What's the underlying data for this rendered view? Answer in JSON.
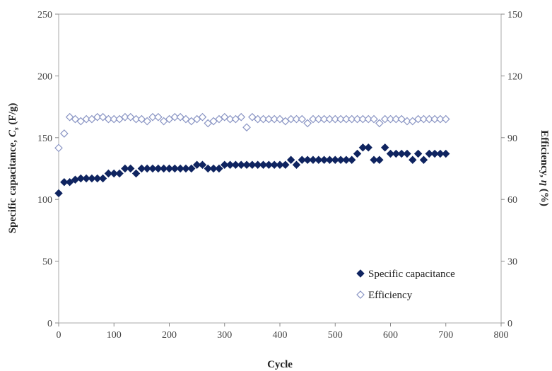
{
  "chart_data": {
    "type": "scatter",
    "title": "",
    "xlabel": "Cycle",
    "ylabel_left": {
      "pre": "Specific capacitance, ",
      "sym": "C",
      "sub": "s",
      "post": " (F/g)"
    },
    "ylabel_right": {
      "pre": "Efficiency, ",
      "sym": "η",
      "post": " (%)"
    },
    "xlim": [
      0,
      800
    ],
    "ylim_left": [
      0,
      250
    ],
    "ylim_right": [
      0,
      150
    ],
    "x_ticks": [
      "0",
      "100",
      "200",
      "300",
      "400",
      "500",
      "600",
      "700",
      "800"
    ],
    "y_left_ticks": [
      "0",
      "50",
      "100",
      "150",
      "200",
      "250"
    ],
    "y_right_ticks": [
      "0",
      "30",
      "60",
      "90",
      "120",
      "150"
    ],
    "grid": false,
    "legend_position": "bottom-right",
    "series": [
      {
        "name": "Specific capacitance",
        "axis": "left",
        "marker": "filled-diamond",
        "color": "#0f2460",
        "x": [
          0,
          10,
          20,
          30,
          40,
          50,
          60,
          70,
          80,
          90,
          100,
          110,
          120,
          130,
          140,
          150,
          160,
          170,
          180,
          190,
          200,
          210,
          220,
          230,
          240,
          250,
          260,
          270,
          280,
          290,
          300,
          310,
          320,
          330,
          340,
          350,
          360,
          370,
          380,
          390,
          400,
          410,
          420,
          430,
          440,
          450,
          460,
          470,
          480,
          490,
          500,
          510,
          520,
          530,
          540,
          550,
          560,
          570,
          580,
          590,
          600,
          610,
          620,
          630,
          640,
          650,
          660,
          670,
          680,
          690,
          700
        ],
        "y": [
          105,
          114,
          114,
          116,
          117,
          117,
          117,
          117,
          117,
          121,
          121,
          121,
          125,
          125,
          121,
          125,
          125,
          125,
          125,
          125,
          125,
          125,
          125,
          125,
          125,
          128,
          128,
          125,
          125,
          125,
          128,
          128,
          128,
          128,
          128,
          128,
          128,
          128,
          128,
          128,
          128,
          128,
          132,
          128,
          132,
          132,
          132,
          132,
          132,
          132,
          132,
          132,
          132,
          132,
          137,
          142,
          142,
          132,
          132,
          142,
          137,
          137,
          137,
          137,
          132,
          137,
          132,
          137,
          137,
          137,
          137
        ]
      },
      {
        "name": "Efficiency",
        "axis": "right",
        "marker": "open-diamond",
        "color": "#8a95c4",
        "x": [
          0,
          10,
          20,
          30,
          40,
          50,
          60,
          70,
          80,
          90,
          100,
          110,
          120,
          130,
          140,
          150,
          160,
          170,
          180,
          190,
          200,
          210,
          220,
          230,
          240,
          250,
          260,
          270,
          280,
          290,
          300,
          310,
          320,
          330,
          340,
          350,
          360,
          370,
          380,
          390,
          400,
          410,
          420,
          430,
          440,
          450,
          460,
          470,
          480,
          490,
          500,
          510,
          520,
          530,
          540,
          550,
          560,
          570,
          580,
          590,
          600,
          610,
          620,
          630,
          640,
          650,
          660,
          670,
          680,
          690,
          700
        ],
        "y": [
          85,
          92,
          100,
          99,
          98,
          99,
          99,
          100,
          100,
          99,
          99,
          99,
          100,
          100,
          99,
          99,
          98,
          100,
          100,
          98,
          99,
          100,
          100,
          99,
          98,
          99,
          100,
          97,
          98,
          99,
          100,
          99,
          99,
          100,
          95,
          100,
          99,
          99,
          99,
          99,
          99,
          98,
          99,
          99,
          99,
          97,
          99,
          99,
          99,
          99,
          99,
          99,
          99,
          99,
          99,
          99,
          99,
          99,
          97,
          99,
          99,
          99,
          99,
          98,
          98,
          99,
          99,
          99,
          99,
          99,
          99
        ]
      }
    ]
  }
}
